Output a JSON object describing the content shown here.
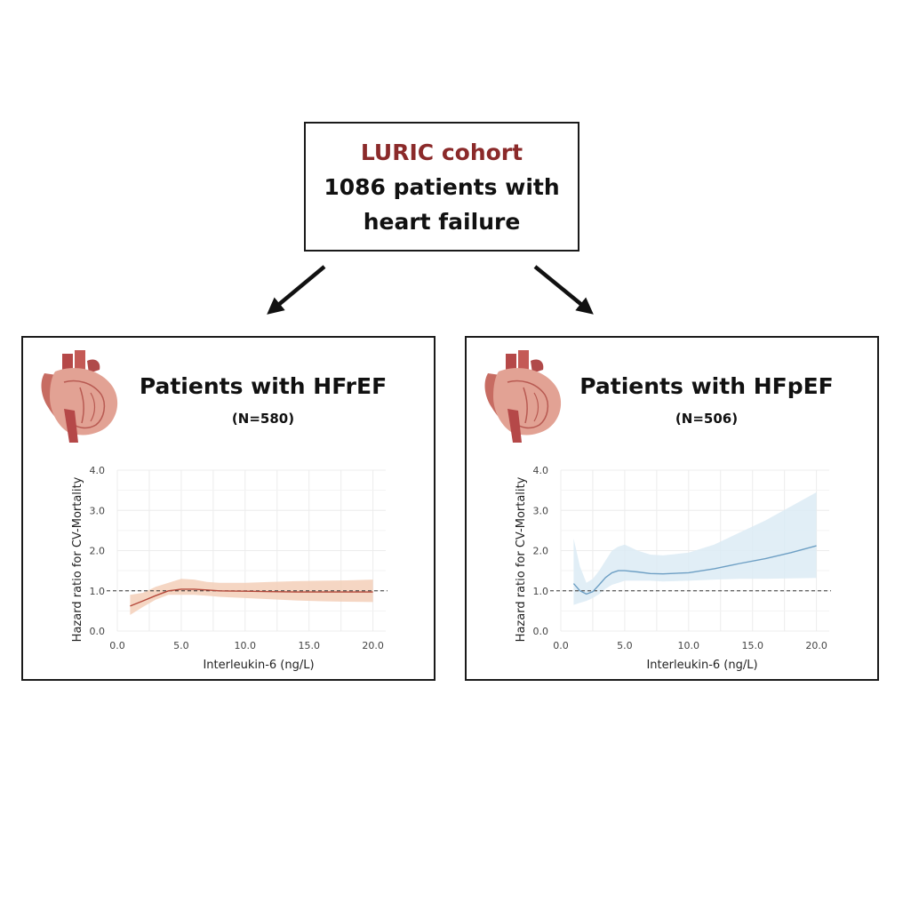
{
  "header": {
    "cohort_label": "LURIC cohort",
    "line2": "1086 patients with",
    "line3": "heart failure",
    "cohort_color": "#8b2a2a"
  },
  "panels": [
    {
      "title": "Patients with HFrEF",
      "n": "(N=580)",
      "icon": "heart-icon"
    },
    {
      "title": "Patients with HFpEF",
      "n": "(N=506)",
      "icon": "heart-icon"
    }
  ],
  "chart_data": [
    {
      "type": "line",
      "title": "",
      "xlabel": "Interleukin-6 (ng/L)",
      "ylabel": "Hazard ratio for CV-Mortality",
      "xlim": [
        0,
        21
      ],
      "ylim": [
        0,
        4
      ],
      "xticks": [
        "0.0",
        "5.0",
        "10.0",
        "15.0",
        "20.0"
      ],
      "xtick_values": [
        0,
        5,
        10,
        15,
        20
      ],
      "yticks": [
        "0.0",
        "1.0",
        "2.0",
        "3.0",
        "4.0"
      ],
      "ytick_values": [
        0,
        1,
        2,
        3,
        4
      ],
      "reference_line": 1.0,
      "grid": true,
      "line_color": "#b5483a",
      "band_color": "#f3cfb8",
      "x": [
        1.0,
        2.0,
        3.0,
        4.0,
        5.0,
        6.0,
        7.0,
        8.0,
        10.0,
        12.0,
        14.0,
        16.0,
        18.0,
        20.0
      ],
      "y": [
        0.62,
        0.75,
        0.88,
        1.0,
        1.04,
        1.04,
        1.02,
        1.0,
        0.99,
        0.98,
        0.97,
        0.97,
        0.97,
        0.97
      ],
      "lower": [
        0.4,
        0.6,
        0.78,
        0.9,
        0.9,
        0.9,
        0.88,
        0.85,
        0.82,
        0.79,
        0.76,
        0.74,
        0.73,
        0.72
      ],
      "upper": [
        0.9,
        0.95,
        1.1,
        1.2,
        1.3,
        1.28,
        1.22,
        1.2,
        1.2,
        1.22,
        1.24,
        1.25,
        1.26,
        1.28
      ]
    },
    {
      "type": "line",
      "title": "",
      "xlabel": "Interleukin-6 (ng/L)",
      "ylabel": "Hazard ratio for CV-Mortality",
      "xlim": [
        0,
        21
      ],
      "ylim": [
        0,
        4
      ],
      "xticks": [
        "0.0",
        "5.0",
        "10.0",
        "15.0",
        "20.0"
      ],
      "xtick_values": [
        0,
        5,
        10,
        15,
        20
      ],
      "yticks": [
        "0.0",
        "1.0",
        "2.0",
        "3.0",
        "4.0"
      ],
      "ytick_values": [
        0,
        1,
        2,
        3,
        4
      ],
      "reference_line": 1.0,
      "grid": true,
      "line_color": "#6d9fc4",
      "band_color": "#dcebf5",
      "x": [
        1.0,
        1.5,
        2.0,
        2.5,
        3.0,
        3.5,
        4.0,
        4.5,
        5.0,
        6.0,
        7.0,
        8.0,
        10.0,
        12.0,
        14.0,
        16.0,
        18.0,
        20.0
      ],
      "y": [
        1.18,
        1.0,
        0.92,
        0.98,
        1.15,
        1.33,
        1.45,
        1.5,
        1.5,
        1.47,
        1.43,
        1.42,
        1.45,
        1.55,
        1.68,
        1.8,
        1.95,
        2.12
      ],
      "lower": [
        0.65,
        0.7,
        0.75,
        0.82,
        0.92,
        1.05,
        1.15,
        1.2,
        1.25,
        1.25,
        1.25,
        1.23,
        1.25,
        1.28,
        1.3,
        1.3,
        1.31,
        1.32
      ],
      "upper": [
        2.3,
        1.6,
        1.2,
        1.3,
        1.5,
        1.75,
        2.0,
        2.1,
        2.15,
        2.0,
        1.9,
        1.88,
        1.95,
        2.15,
        2.45,
        2.75,
        3.1,
        3.45
      ]
    }
  ]
}
